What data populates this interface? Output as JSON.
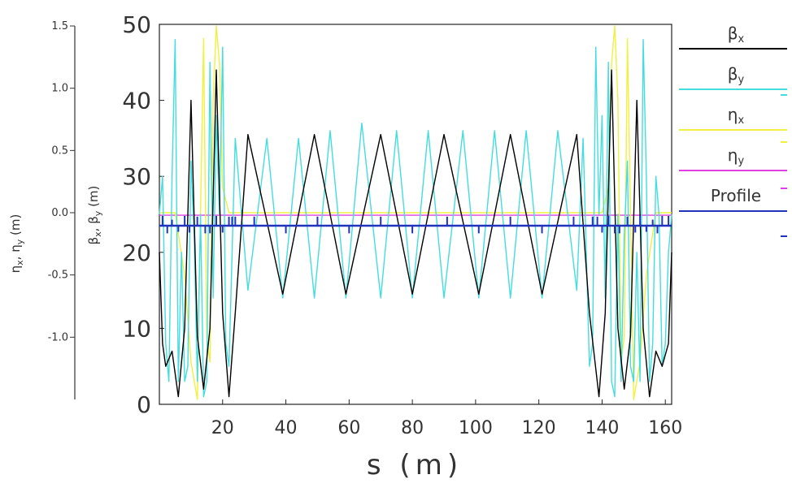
{
  "chart_data": {
    "type": "line",
    "xlabel": "s (m)",
    "ylabel": "β_x, β_y (m)",
    "ylabel2": "η_x, η_y (m)",
    "xlim": [
      0,
      162
    ],
    "ylim": [
      0,
      50
    ],
    "ylim2": [
      -1.5,
      1.5
    ],
    "x_ticks": [
      20,
      40,
      60,
      80,
      100,
      120,
      140,
      160
    ],
    "y_ticks": [
      0,
      10,
      20,
      30,
      40,
      50
    ],
    "y2_ticks": [
      -1.0,
      -0.5,
      0.0,
      0.5,
      1.0,
      1.5
    ],
    "y2_tick_labels": [
      "-1.0",
      "-0.5",
      "0.0",
      "0.5",
      "1.0",
      "1.5"
    ],
    "legend_position": "right",
    "legend": [
      {
        "key": "betax",
        "label": "β_x",
        "color": "#000000"
      },
      {
        "key": "betay",
        "label": "β_y",
        "color": "#44dddd"
      },
      {
        "key": "etax",
        "label": "η_x",
        "color": "#f0f040"
      },
      {
        "key": "etay",
        "label": "η_y",
        "color": "#e040e0"
      },
      {
        "key": "profile",
        "label": "Profile",
        "color": "#2233bb"
      }
    ],
    "series": [
      {
        "name": "β_x",
        "color": "#000000",
        "axis": "left",
        "x": [
          0,
          1,
          2,
          4,
          6,
          8,
          10,
          12,
          14,
          16,
          18,
          20,
          22,
          24,
          28,
          39,
          49,
          59,
          70,
          80,
          90,
          101,
          111,
          121,
          132,
          136,
          139,
          141,
          143,
          145,
          147,
          149,
          151,
          153,
          155,
          157,
          159,
          161,
          162
        ],
        "y": [
          20,
          8,
          5,
          7,
          1,
          10,
          40,
          9,
          2,
          10,
          44,
          12,
          1,
          12,
          35.5,
          14.5,
          35.5,
          14.5,
          35.5,
          14.5,
          35.5,
          14.5,
          35.5,
          14.5,
          35.5,
          12,
          1,
          12,
          44,
          10,
          2,
          9,
          40,
          10,
          1,
          7,
          5,
          8,
          20
        ]
      },
      {
        "name": "β_y",
        "color": "#44dddd",
        "axis": "left",
        "x": [
          0,
          1,
          2,
          3,
          4,
          5,
          6,
          7,
          8,
          9,
          10,
          11,
          12,
          13,
          14,
          15,
          16,
          17,
          18,
          19,
          20,
          21,
          22,
          24,
          28,
          34,
          39,
          44,
          49,
          54,
          59,
          64,
          70,
          75,
          80,
          85,
          90,
          96,
          101,
          106,
          111,
          116,
          121,
          126,
          132,
          134,
          136,
          137,
          138,
          139,
          140,
          141,
          142,
          143,
          144,
          145,
          146,
          147,
          148,
          149,
          150,
          151,
          152,
          153,
          154,
          155,
          156,
          157,
          158,
          159,
          160,
          161,
          162
        ],
        "y": [
          25,
          30,
          8,
          3,
          30,
          48,
          3,
          20,
          3,
          5,
          32,
          22,
          3,
          25,
          1,
          3,
          45,
          14,
          38,
          25,
          47,
          8,
          5,
          35,
          15,
          35,
          14,
          35,
          14,
          36,
          14,
          37,
          14,
          36,
          14,
          36,
          14,
          36,
          14,
          36,
          14,
          36,
          14,
          36,
          15,
          35,
          5,
          8,
          47,
          25,
          38,
          14,
          45,
          3,
          1,
          25,
          3,
          22,
          32,
          5,
          3,
          20,
          3,
          48,
          30,
          3,
          8,
          30,
          25,
          5,
          8,
          20,
          25
        ]
      },
      {
        "name": "η_x",
        "color": "#f0f040",
        "axis": "right",
        "x": [
          0,
          5,
          8,
          10,
          12,
          13,
          14,
          15,
          16,
          17,
          18,
          19,
          20,
          21,
          22,
          24,
          28,
          134,
          138,
          140,
          141,
          142,
          143,
          144,
          145,
          146,
          147,
          148,
          149,
          150,
          152,
          154,
          157,
          162
        ],
        "y": [
          0,
          0,
          -0.5,
          -1.2,
          -1.5,
          0,
          1.4,
          -1.0,
          -1.2,
          0.9,
          1.5,
          1.2,
          0.2,
          0.1,
          0,
          0,
          0,
          0,
          0,
          0,
          0.1,
          0.2,
          1.2,
          1.5,
          0.9,
          -1.2,
          -1.0,
          1.4,
          0,
          -1.5,
          -1.2,
          -0.5,
          0,
          0
        ]
      },
      {
        "name": "η_y",
        "color": "#e040e0",
        "axis": "right",
        "x": [
          0,
          162
        ],
        "y": [
          -0.02,
          -0.02
        ]
      },
      {
        "name": "Profile",
        "color": "#2233bb",
        "axis": "left",
        "baseline": 23.5,
        "elements": [
          {
            "s": 1,
            "h": 1.3
          },
          {
            "s": 2.5,
            "h": -1
          },
          {
            "s": 4,
            "h": 0.8
          },
          {
            "s": 6,
            "h": -0.8
          },
          {
            "s": 8,
            "h": 1.3
          },
          {
            "s": 9.5,
            "h": -0.9
          },
          {
            "s": 12,
            "h": 1.2
          },
          {
            "s": 14.5,
            "h": -1
          },
          {
            "s": 16,
            "h": -1
          },
          {
            "s": 18,
            "h": 1.3
          },
          {
            "s": 20,
            "h": -0.9
          },
          {
            "s": 22,
            "h": 1.2
          },
          {
            "s": 23,
            "h": 1.2
          },
          {
            "s": 24,
            "h": 1.2
          },
          {
            "s": 30,
            "h": 1.2
          },
          {
            "s": 40,
            "h": -1
          },
          {
            "s": 50,
            "h": 1.2
          },
          {
            "s": 60,
            "h": -1
          },
          {
            "s": 70,
            "h": 1.2
          },
          {
            "s": 80,
            "h": -1
          },
          {
            "s": 91,
            "h": 1.2
          },
          {
            "s": 101,
            "h": -1
          },
          {
            "s": 111,
            "h": 1.2
          },
          {
            "s": 121,
            "h": -1
          },
          {
            "s": 131,
            "h": 1.2
          },
          {
            "s": 137,
            "h": 1.2
          },
          {
            "s": 138.5,
            "h": 1.2
          },
          {
            "s": 140,
            "h": -0.9
          },
          {
            "s": 142,
            "h": 1.3
          },
          {
            "s": 144,
            "h": -1
          },
          {
            "s": 145.5,
            "h": -1
          },
          {
            "s": 148,
            "h": 1.2
          },
          {
            "s": 150.5,
            "h": -0.9
          },
          {
            "s": 152,
            "h": 1.3
          },
          {
            "s": 154,
            "h": -0.8
          },
          {
            "s": 156,
            "h": 0.8
          },
          {
            "s": 157.5,
            "h": -1
          },
          {
            "s": 159,
            "h": 1.3
          },
          {
            "s": 161,
            "h": 1.3
          }
        ]
      }
    ]
  }
}
